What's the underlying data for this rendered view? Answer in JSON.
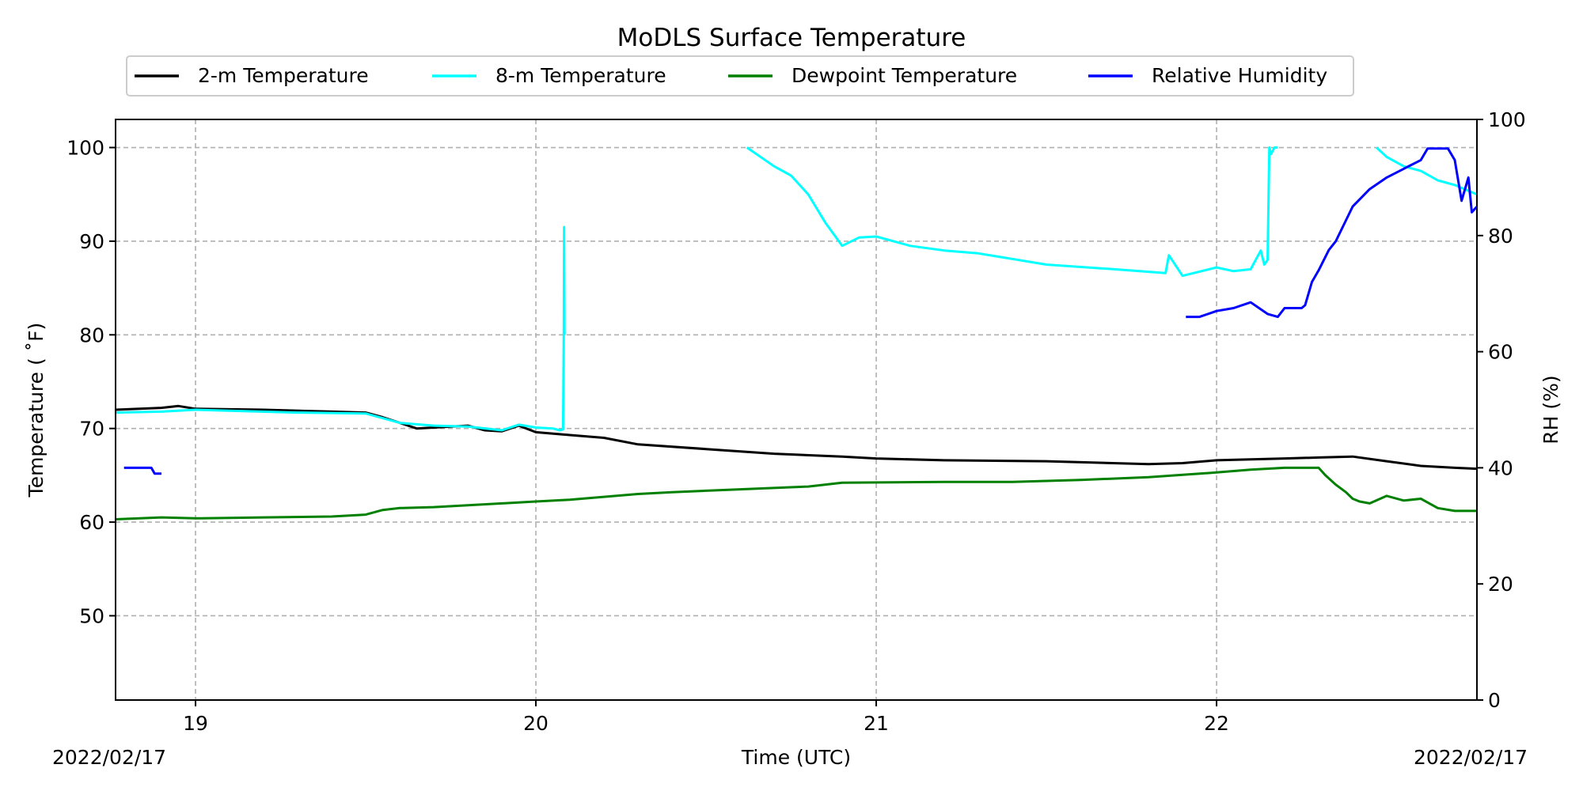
{
  "chart_data": {
    "type": "line",
    "title": "MoDLS Surface Temperature",
    "xlabel": "Time (UTC)",
    "ylabel_left": "Temperature ($^\\circ$F)",
    "ylabel_left_display": "Temperature ( ˚F)",
    "ylabel_right": "RH (%)",
    "date_left": "2022/02/17",
    "date_right": "2022/02/17",
    "xlim": [
      18.765,
      22.765
    ],
    "ylim_left": [
      41,
      103
    ],
    "ylim_right": [
      0,
      100
    ],
    "x_ticks": [
      19,
      20,
      21,
      22
    ],
    "x_tick_labels": [
      "19",
      "20",
      "21",
      "22"
    ],
    "y_left_ticks": [
      50,
      60,
      70,
      80,
      90,
      100
    ],
    "y_left_tick_labels": [
      "50",
      "60",
      "70",
      "80",
      "90",
      "100"
    ],
    "y_right_ticks": [
      0,
      20,
      40,
      60,
      80,
      100
    ],
    "y_right_tick_labels": [
      "0",
      "20",
      "40",
      "60",
      "80",
      "100"
    ],
    "grid": true,
    "legend_placement": "top-center, above plot",
    "series": [
      {
        "name": "2-m Temperature",
        "color": "#000000",
        "axis": "left",
        "x": [
          18.765,
          18.9,
          18.95,
          19.0,
          19.2,
          19.4,
          19.5,
          19.55,
          19.6,
          19.65,
          19.7,
          19.8,
          19.85,
          19.9,
          19.95,
          20.0,
          20.1,
          20.2,
          20.3,
          20.5,
          20.7,
          20.9,
          21.0,
          21.2,
          21.5,
          21.8,
          21.9,
          22.0,
          22.2,
          22.3,
          22.4,
          22.5,
          22.6,
          22.7,
          22.765
        ],
        "y": [
          72.0,
          72.2,
          72.4,
          72.1,
          72.0,
          71.8,
          71.7,
          71.2,
          70.6,
          70.0,
          70.1,
          70.3,
          69.8,
          69.7,
          70.3,
          69.6,
          69.3,
          69.0,
          68.3,
          67.8,
          67.3,
          67.0,
          66.8,
          66.6,
          66.5,
          66.2,
          66.3,
          66.6,
          66.8,
          66.9,
          67.0,
          66.5,
          66.0,
          65.8,
          65.7
        ]
      },
      {
        "name": "8-m Temperature",
        "color": "#00ffff",
        "axis": "left",
        "x": [
          18.765,
          18.9,
          19.0,
          19.3,
          19.5,
          19.6,
          19.7,
          19.8,
          19.9,
          19.95,
          20.0,
          20.05,
          20.07,
          20.08,
          20.082,
          20.083,
          20.084,
          null,
          20.62,
          20.7,
          20.75,
          20.8,
          20.85,
          20.9,
          20.95,
          21.0,
          21.1,
          21.2,
          21.3,
          21.5,
          21.7,
          21.85,
          21.86,
          21.9,
          22.0,
          22.05,
          22.1,
          22.13,
          22.14,
          22.15,
          22.155,
          22.16,
          22.17,
          22.18,
          null,
          22.47,
          22.5,
          22.55,
          22.6,
          22.65,
          22.7,
          22.765
        ],
        "y": [
          71.7,
          71.8,
          72.0,
          71.7,
          71.6,
          70.6,
          70.3,
          70.2,
          69.8,
          70.4,
          70.1,
          70.0,
          69.8,
          69.9,
          80.0,
          91.5,
          80.0,
          null,
          100.0,
          98.0,
          97.0,
          95.0,
          92.0,
          89.5,
          90.4,
          90.5,
          89.5,
          89.0,
          88.7,
          87.5,
          87.0,
          86.6,
          88.5,
          86.3,
          87.2,
          86.8,
          87.0,
          89.0,
          87.5,
          88.0,
          100.0,
          99.3,
          100.0,
          100.0,
          null,
          100.0,
          99.0,
          98.0,
          97.5,
          96.5,
          96.0,
          95.0
        ]
      },
      {
        "name": "Dewpoint Temperature",
        "color": "#008000",
        "axis": "left",
        "x": [
          18.765,
          18.9,
          19.0,
          19.2,
          19.4,
          19.5,
          19.55,
          19.6,
          19.7,
          19.8,
          19.9,
          20.0,
          20.1,
          20.2,
          20.3,
          20.4,
          20.6,
          20.8,
          20.9,
          21.2,
          21.4,
          21.6,
          21.8,
          22.0,
          22.1,
          22.2,
          22.3,
          22.32,
          22.35,
          22.38,
          22.4,
          22.42,
          22.45,
          22.5,
          22.55,
          22.6,
          22.65,
          22.7,
          22.765
        ],
        "y": [
          60.3,
          60.5,
          60.4,
          60.5,
          60.6,
          60.8,
          61.3,
          61.5,
          61.6,
          61.8,
          62.0,
          62.2,
          62.4,
          62.7,
          63.0,
          63.2,
          63.5,
          63.8,
          64.2,
          64.3,
          64.3,
          64.5,
          64.8,
          65.3,
          65.6,
          65.8,
          65.8,
          65.0,
          64.0,
          63.2,
          62.5,
          62.2,
          62.0,
          62.8,
          62.3,
          62.5,
          61.5,
          61.2,
          61.2
        ]
      },
      {
        "name": "Relative Humidity",
        "color": "#0000ff",
        "axis": "right",
        "x": [
          18.79,
          18.87,
          18.88,
          18.9,
          null,
          21.91,
          21.95,
          22.0,
          22.05,
          22.1,
          22.15,
          22.18,
          22.2,
          22.25,
          22.26,
          22.28,
          22.3,
          22.33,
          22.35,
          22.4,
          22.45,
          22.5,
          22.55,
          22.6,
          22.62,
          22.65,
          22.68,
          22.7,
          22.72,
          22.74,
          22.75,
          22.765
        ],
        "y": [
          40.0,
          40.0,
          39.0,
          39.0,
          null,
          66.0,
          66.0,
          67.0,
          67.5,
          68.5,
          66.5,
          66.0,
          67.5,
          67.5,
          68.0,
          72.0,
          74.0,
          77.5,
          79.0,
          85.0,
          88.0,
          90.0,
          91.5,
          93.0,
          95.0,
          95.0,
          95.0,
          93.0,
          86.0,
          90.0,
          84.0,
          85.0
        ]
      }
    ]
  }
}
